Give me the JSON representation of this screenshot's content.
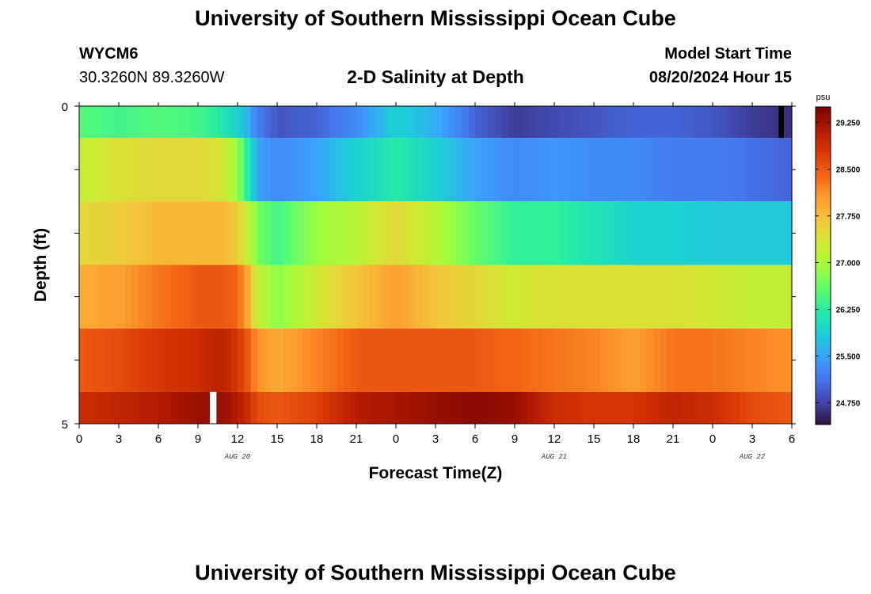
{
  "header": {
    "title": "University of Southern Mississippi Ocean Cube",
    "station_id": "WYCM6",
    "coordinates": "30.3260N  89.3260W",
    "plot_title": "2-D Salinity at Depth",
    "model_start_label": "Model Start Time",
    "model_start_value": "08/20/2024 Hour 15"
  },
  "footer": {
    "title": "University of Southern Mississippi Ocean Cube"
  },
  "colors": {
    "missing_white": "#ffffff",
    "missing_black": "#000000",
    "colormap": [
      "#30123b",
      "#4145ab",
      "#4675ed",
      "#39a2fc",
      "#1bcfd4",
      "#24eca6",
      "#61fc6c",
      "#a4fc3b",
      "#d1e834",
      "#f3c63a",
      "#fe9b2d",
      "#f36315",
      "#d93806",
      "#b11901",
      "#7a0402"
    ]
  },
  "chart_data": {
    "type": "heatmap",
    "xlabel": "Forecast Time(Z)",
    "ylabel": "Depth (ft)",
    "xlim": [
      0,
      54
    ],
    "ylim": [
      0,
      5
    ],
    "x_ticks": [
      0,
      3,
      6,
      9,
      12,
      15,
      18,
      21,
      24,
      27,
      30,
      33,
      36,
      39,
      42,
      45,
      48,
      51,
      54
    ],
    "x_tick_labels": [
      "0",
      "3",
      "6",
      "9",
      "12",
      "15",
      "18",
      "21",
      "0",
      "3",
      "6",
      "9",
      "12",
      "15",
      "18",
      "21",
      "0",
      "3",
      "6"
    ],
    "y_ticks": [
      0,
      5
    ],
    "y_tick_labels": [
      "0",
      "5"
    ],
    "date_labels": [
      {
        "x": 12,
        "label": "AUG 20"
      },
      {
        "x": 36,
        "label": "AUG 21"
      },
      {
        "x": 51,
        "label": "AUG 22"
      }
    ],
    "colorbar": {
      "unit": "psu",
      "vmin": 24.4,
      "vmax": 29.5,
      "ticks": [
        24.75,
        25.5,
        26.25,
        27.0,
        27.75,
        28.5,
        29.25
      ],
      "tick_labels": [
        "24.750",
        "25.500",
        "26.250",
        "27.000",
        "27.750",
        "28.500",
        "29.250"
      ]
    },
    "time_knots": [
      0,
      3,
      6,
      9,
      10,
      11,
      12,
      12.8,
      13.5,
      15,
      18,
      21,
      24,
      27,
      30,
      33,
      36,
      39,
      42,
      45,
      48,
      51,
      54
    ],
    "layers": [
      {
        "depth_range": [
          0,
          0.5
        ],
        "salinity": [
          26.5,
          26.4,
          26.5,
          26.4,
          26.3,
          26.1,
          25.9,
          25.6,
          25.2,
          24.9,
          25.0,
          25.3,
          25.9,
          25.6,
          25.0,
          24.7,
          24.8,
          24.9,
          25.0,
          25.0,
          24.9,
          24.7,
          24.6
        ]
      },
      {
        "depth_range": [
          0.5,
          1.5
        ],
        "salinity": [
          27.2,
          27.4,
          27.5,
          27.5,
          27.4,
          27.3,
          26.9,
          26.2,
          25.5,
          25.3,
          25.5,
          25.9,
          26.2,
          25.9,
          25.5,
          25.3,
          25.4,
          25.3,
          25.3,
          25.2,
          25.2,
          25.1,
          25.0
        ]
      },
      {
        "depth_range": [
          1.5,
          2.5
        ],
        "salinity": [
          27.5,
          27.6,
          27.8,
          27.8,
          27.8,
          27.8,
          27.6,
          27.2,
          26.7,
          26.4,
          26.9,
          27.1,
          27.5,
          27.1,
          26.6,
          26.3,
          26.3,
          26.1,
          25.9,
          25.9,
          25.8,
          25.8,
          25.8
        ]
      },
      {
        "depth_range": [
          2.5,
          3.5
        ],
        "salinity": [
          27.9,
          28.0,
          28.3,
          28.5,
          28.5,
          28.5,
          28.4,
          27.9,
          27.2,
          26.8,
          27.3,
          27.7,
          28.0,
          27.7,
          27.5,
          27.3,
          27.4,
          27.4,
          27.4,
          27.4,
          27.3,
          27.2,
          27.2
        ]
      },
      {
        "depth_range": [
          3.5,
          4.5
        ],
        "salinity": [
          28.5,
          28.6,
          28.8,
          28.9,
          29.0,
          29.0,
          28.8,
          28.5,
          28.1,
          27.9,
          28.2,
          28.5,
          28.5,
          28.5,
          28.5,
          28.4,
          28.3,
          28.2,
          28.0,
          28.3,
          28.3,
          28.2,
          28.1
        ]
      },
      {
        "depth_range": [
          4.5,
          5.0
        ],
        "salinity": [
          28.9,
          29.0,
          29.1,
          29.3,
          29.3,
          29.3,
          29.1,
          28.9,
          28.6,
          28.5,
          28.7,
          29.1,
          29.2,
          29.3,
          29.4,
          29.3,
          28.9,
          28.8,
          28.8,
          29.0,
          28.9,
          28.6,
          28.5
        ]
      }
    ],
    "missing_cells": [
      {
        "x_range": [
          53.0,
          53.4
        ],
        "depth_range": [
          0,
          0.5
        ],
        "fill": "black"
      },
      {
        "x_range": [
          9.9,
          10.4
        ],
        "depth_range": [
          4.5,
          5.0
        ],
        "fill": "white"
      }
    ]
  }
}
